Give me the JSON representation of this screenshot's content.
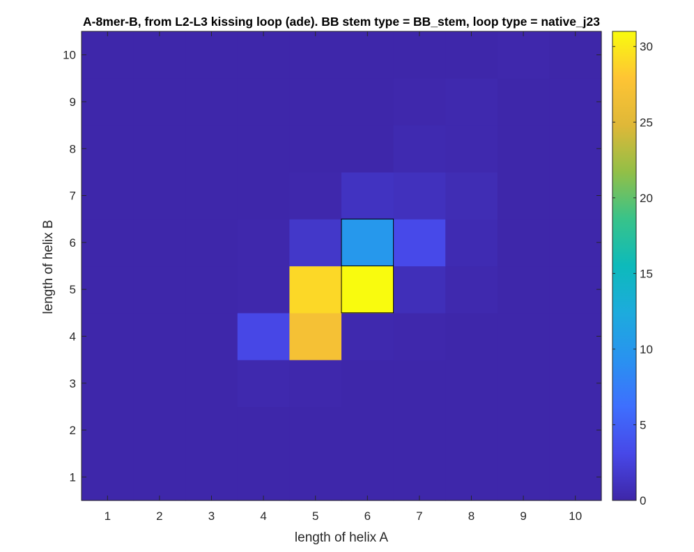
{
  "chart_data": {
    "type": "heatmap",
    "title": "A-8mer-B, from L2-L3 kissing loop (ade). BB stem type = BB_stem, loop type = native_j23",
    "xlabel": "length of helix A",
    "ylabel": "length of helix B",
    "x": [
      1,
      2,
      3,
      4,
      5,
      6,
      7,
      8,
      9,
      10
    ],
    "y": [
      1,
      2,
      3,
      4,
      5,
      6,
      7,
      8,
      9,
      10
    ],
    "xlim": [
      0.5,
      10.5
    ],
    "ylim": [
      0.5,
      10.5
    ],
    "x_tick_labels": [
      "1",
      "2",
      "3",
      "4",
      "5",
      "6",
      "7",
      "8",
      "9",
      "10"
    ],
    "y_tick_labels": [
      "1",
      "2",
      "3",
      "4",
      "5",
      "6",
      "7",
      "8",
      "9",
      "10"
    ],
    "colormap": "parula",
    "clim": [
      0,
      31
    ],
    "colorbar_ticks": [
      "0",
      "5",
      "10",
      "15",
      "20",
      "25",
      "30"
    ],
    "colorbar_tick_values": [
      0,
      5,
      10,
      15,
      20,
      25,
      30
    ],
    "highlighted_cells": [
      [
        6,
        6
      ],
      [
        6,
        5
      ]
    ],
    "z_rows_note": "rows ordered y=1..10, columns x=1..10",
    "z": [
      [
        0.1,
        0.1,
        0.1,
        0.1,
        0.1,
        0.1,
        0.1,
        0.1,
        0.1,
        0.1
      ],
      [
        0.1,
        0.1,
        0.1,
        0.1,
        0.1,
        0.1,
        0.1,
        0.1,
        0.1,
        0.1
      ],
      [
        0.1,
        0.1,
        0.1,
        0.3,
        0.2,
        0.1,
        0.1,
        0.1,
        0.1,
        0.1
      ],
      [
        0.1,
        0.1,
        0.1,
        3,
        27,
        0.3,
        0.2,
        0.1,
        0.1,
        0.1
      ],
      [
        0.1,
        0.1,
        0.1,
        0.2,
        29,
        31,
        0.8,
        0.3,
        0.1,
        0.1
      ],
      [
        0.1,
        0.1,
        0.1,
        0.2,
        1.6,
        10,
        3.2,
        0.5,
        0.1,
        0.1
      ],
      [
        0.1,
        0.1,
        0.1,
        0.1,
        0.2,
        1.2,
        1.0,
        0.6,
        0.1,
        0.1
      ],
      [
        0.1,
        0.1,
        0.1,
        0.1,
        0.1,
        0.1,
        0.4,
        0.3,
        0.1,
        0.1
      ],
      [
        0.1,
        0.1,
        0.1,
        0.1,
        0.1,
        0.1,
        0.2,
        0.3,
        0.1,
        0.1
      ],
      [
        0.1,
        0.1,
        0.1,
        0.1,
        0.1,
        0.1,
        0.1,
        0.1,
        0.2,
        0.05
      ]
    ]
  }
}
